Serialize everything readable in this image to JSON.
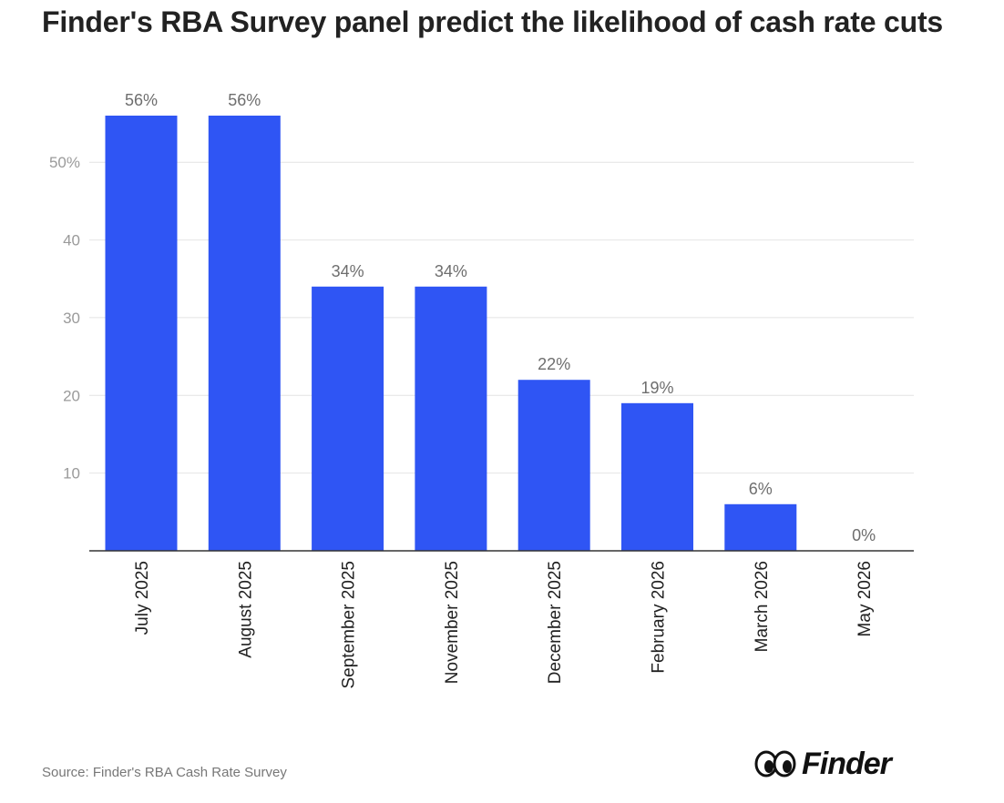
{
  "title": "Finder's RBA Survey panel predict the likelihood of cash rate cuts",
  "source": "Source: Finder's RBA Cash Rate Survey",
  "logo": {
    "text": "Finder",
    "icon": "finder-eyes-icon"
  },
  "colors": {
    "bar": "#2f55f4",
    "grid": "#e4e4e4",
    "axis": "#333333"
  },
  "chart_data": {
    "type": "bar",
    "title": "Finder's RBA Survey panel predict the likelihood of cash rate cuts",
    "xlabel": "",
    "ylabel": "",
    "ylim": [
      0,
      56
    ],
    "yticks": [
      10,
      20,
      30,
      40,
      50
    ],
    "ytick_labels": [
      "10",
      "20",
      "30",
      "40",
      "50%"
    ],
    "grid": true,
    "categories": [
      "July 2025",
      "August 2025",
      "September 2025",
      "November 2025",
      "December 2025",
      "February 2026",
      "March 2026",
      "May 2026"
    ],
    "values": [
      56,
      56,
      34,
      34,
      22,
      19,
      6,
      0
    ],
    "data_labels": [
      "56%",
      "56%",
      "34%",
      "34%",
      "22%",
      "19%",
      "6%",
      "0%"
    ]
  }
}
